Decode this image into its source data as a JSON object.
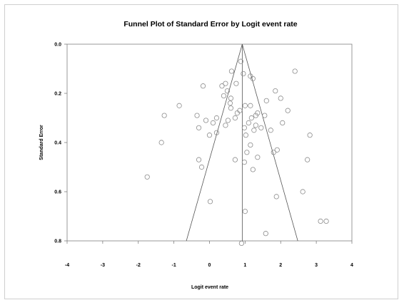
{
  "chart_data": {
    "type": "scatter",
    "title": "Funnel Plot of Standard Error by Logit event rate",
    "xlabel": "Logit event rate",
    "ylabel": "Standard Error",
    "xlim": [
      -4,
      4
    ],
    "ylim": [
      0.8,
      0.0
    ],
    "y_inverted": true,
    "xticks": [
      "-4",
      "-3",
      "-2",
      "-1",
      "0",
      "1",
      "2",
      "3",
      "4"
    ],
    "yticks": [
      "0.0",
      "0.2",
      "0.4",
      "0.6",
      "0.8"
    ],
    "grid": false,
    "legend": "none",
    "reference_line_x": 0.92,
    "funnel": {
      "apex": [
        0.92,
        0.0
      ],
      "bottom_left": [
        -0.65,
        0.8
      ],
      "bottom_right": [
        2.48,
        0.8
      ]
    },
    "colors": {
      "axis": "#7f7f7f",
      "marker": "#8c8c8c",
      "funnel": "#555555"
    },
    "points": [
      {
        "x": 0.88,
        "y": 0.07
      },
      {
        "x": 1.15,
        "y": 0.13
      },
      {
        "x": 1.22,
        "y": 0.14
      },
      {
        "x": 0.62,
        "y": 0.11
      },
      {
        "x": 0.95,
        "y": 0.12
      },
      {
        "x": 2.4,
        "y": 0.11
      },
      {
        "x": 0.45,
        "y": 0.16
      },
      {
        "x": 0.75,
        "y": 0.16
      },
      {
        "x": -0.18,
        "y": 0.17
      },
      {
        "x": 0.35,
        "y": 0.17
      },
      {
        "x": 0.5,
        "y": 0.19
      },
      {
        "x": 1.85,
        "y": 0.19
      },
      {
        "x": 0.4,
        "y": 0.21
      },
      {
        "x": 2.0,
        "y": 0.22
      },
      {
        "x": 0.6,
        "y": 0.22
      },
      {
        "x": 1.6,
        "y": 0.23
      },
      {
        "x": 0.58,
        "y": 0.24
      },
      {
        "x": -0.85,
        "y": 0.25
      },
      {
        "x": 1.0,
        "y": 0.25
      },
      {
        "x": 1.15,
        "y": 0.25
      },
      {
        "x": 0.6,
        "y": 0.26
      },
      {
        "x": 0.85,
        "y": 0.27
      },
      {
        "x": 0.78,
        "y": 0.28
      },
      {
        "x": 2.2,
        "y": 0.27
      },
      {
        "x": 1.55,
        "y": 0.29
      },
      {
        "x": 1.35,
        "y": 0.28
      },
      {
        "x": 1.3,
        "y": 0.29
      },
      {
        "x": 0.72,
        "y": 0.3
      },
      {
        "x": 1.18,
        "y": 0.3
      },
      {
        "x": -1.27,
        "y": 0.29
      },
      {
        "x": -0.35,
        "y": 0.29
      },
      {
        "x": 0.2,
        "y": 0.3
      },
      {
        "x": -0.1,
        "y": 0.31
      },
      {
        "x": 0.52,
        "y": 0.31
      },
      {
        "x": 0.1,
        "y": 0.32
      },
      {
        "x": 1.1,
        "y": 0.32
      },
      {
        "x": 1.3,
        "y": 0.33
      },
      {
        "x": 2.05,
        "y": 0.32
      },
      {
        "x": 0.45,
        "y": 0.33
      },
      {
        "x": -0.3,
        "y": 0.34
      },
      {
        "x": 1.45,
        "y": 0.34
      },
      {
        "x": 0.98,
        "y": 0.34
      },
      {
        "x": 1.25,
        "y": 0.35
      },
      {
        "x": 1.72,
        "y": 0.35
      },
      {
        "x": 0.2,
        "y": 0.36
      },
      {
        "x": 1.02,
        "y": 0.37
      },
      {
        "x": 2.82,
        "y": 0.37
      },
      {
        "x": 0.0,
        "y": 0.37
      },
      {
        "x": -1.35,
        "y": 0.4
      },
      {
        "x": 1.15,
        "y": 0.41
      },
      {
        "x": 1.9,
        "y": 0.43
      },
      {
        "x": 1.05,
        "y": 0.44
      },
      {
        "x": 1.8,
        "y": 0.44
      },
      {
        "x": -0.3,
        "y": 0.47
      },
      {
        "x": 0.72,
        "y": 0.47
      },
      {
        "x": 2.75,
        "y": 0.47
      },
      {
        "x": 1.35,
        "y": 0.46
      },
      {
        "x": 0.98,
        "y": 0.48
      },
      {
        "x": -0.22,
        "y": 0.5
      },
      {
        "x": 1.22,
        "y": 0.51
      },
      {
        "x": -1.75,
        "y": 0.54
      },
      {
        "x": 2.62,
        "y": 0.6
      },
      {
        "x": 1.88,
        "y": 0.62
      },
      {
        "x": 0.02,
        "y": 0.64
      },
      {
        "x": 1.0,
        "y": 0.68
      },
      {
        "x": 3.12,
        "y": 0.72
      },
      {
        "x": 3.28,
        "y": 0.72
      },
      {
        "x": 1.58,
        "y": 0.77
      },
      {
        "x": 0.9,
        "y": 0.81
      }
    ]
  }
}
